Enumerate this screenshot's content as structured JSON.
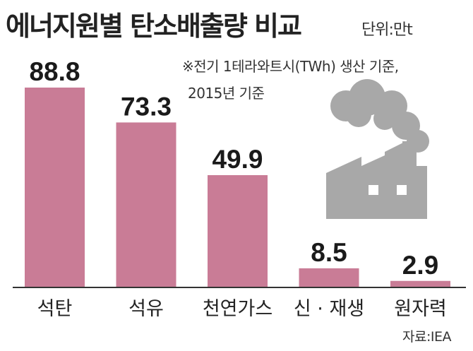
{
  "title": "에너지원별 탄소배출량 비교",
  "unit": "단위:만t",
  "note_line1": "※전기 1테라와트시(TWh) 생산 기준,",
  "note_line2": "2015년 기준",
  "source": "자료:IEA",
  "colors": {
    "bar": "#c97c96",
    "axis": "#333333",
    "factory": "#a8a8a8"
  },
  "icon": "factory-smoke-icon",
  "chart_data": {
    "type": "bar",
    "categories": [
      "석탄",
      "석유",
      "천연가스",
      "신 · 재생",
      "원자력"
    ],
    "values": [
      88.8,
      73.3,
      49.9,
      8.5,
      2.9
    ],
    "value_labels": [
      "88.8",
      "73.3",
      "49.9",
      "8.5",
      "2.9"
    ],
    "ylim": [
      0,
      100
    ],
    "grid": false,
    "legend": "none"
  }
}
